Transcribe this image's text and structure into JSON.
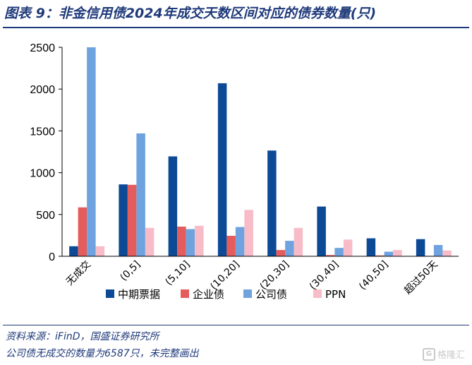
{
  "title": "图表 9：非金信用债2024年成交天数区间对应的债券数量(只)",
  "source": "资料来源：iFinD，国盛证券研究所",
  "note": "公司债无成交的数量为6587只，未完整画出",
  "watermark": "格隆汇",
  "chart_data": {
    "type": "bar",
    "categories": [
      "无成交",
      "(0,5]",
      "(5,10]",
      "(10,20]",
      "(20,30]",
      "(30,40]",
      "(40,50]",
      "超过50天"
    ],
    "series": [
      {
        "name": "中期票据",
        "color": "#0d4a96",
        "values": [
          120,
          860,
          1195,
          2070,
          1265,
          595,
          215,
          205
        ]
      },
      {
        "name": "企业债",
        "color": "#e55c5c",
        "values": [
          585,
          855,
          355,
          245,
          75,
          15,
          10,
          5
        ]
      },
      {
        "name": "公司债",
        "color": "#6fa3e0",
        "values": [
          2500,
          1470,
          325,
          350,
          185,
          100,
          55,
          135
        ]
      },
      {
        "name": "PPN",
        "color": "#f8bcc8",
        "values": [
          120,
          340,
          365,
          555,
          340,
          200,
          75,
          70
        ]
      }
    ],
    "yticks": [
      0,
      500,
      1000,
      1500,
      2000,
      2500
    ],
    "ylim": [
      0,
      2700
    ],
    "legend": "bottom",
    "grid": false
  }
}
